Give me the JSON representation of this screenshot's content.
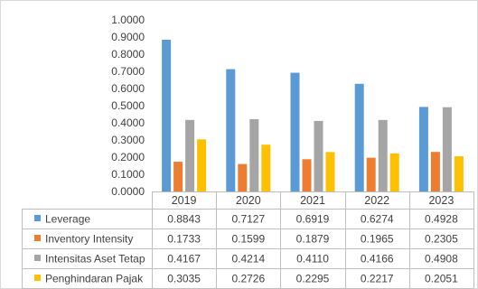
{
  "chart_data": {
    "type": "bar",
    "title": "",
    "xlabel": "",
    "ylabel": "",
    "categories": [
      "2019",
      "2020",
      "2021",
      "2022",
      "2023"
    ],
    "ylim": [
      0,
      1
    ],
    "y_ticks": [
      "0.0000",
      "0.1000",
      "0.2000",
      "0.3000",
      "0.4000",
      "0.5000",
      "0.6000",
      "0.7000",
      "0.8000",
      "0.9000",
      "1.0000"
    ],
    "grid": false,
    "legend": "data-table",
    "series": [
      {
        "name": "Leverage",
        "color": "#5B9BD5",
        "values": [
          0.8843,
          0.7127,
          0.6919,
          0.6274,
          0.4928
        ],
        "labels": [
          "0.8843",
          "0.7127",
          "0.6919",
          "0.6274",
          "0.4928"
        ]
      },
      {
        "name": "Inventory Intensity",
        "color": "#ED7D31",
        "values": [
          0.1733,
          0.1599,
          0.1879,
          0.1965,
          0.2305
        ],
        "labels": [
          "0.1733",
          "0.1599",
          "0.1879",
          "0.1965",
          "0.2305"
        ]
      },
      {
        "name": "Intensitas Aset Tetap",
        "color": "#A5A5A5",
        "values": [
          0.4167,
          0.4214,
          0.411,
          0.4166,
          0.4908
        ],
        "labels": [
          "0.4167",
          "0.4214",
          "0.4110",
          "0.4166",
          "0.4908"
        ]
      },
      {
        "name": "Penghindaran Pajak",
        "color": "#FFC000",
        "values": [
          0.3035,
          0.2726,
          0.2295,
          0.2217,
          0.2051
        ],
        "labels": [
          "0.3035",
          "0.2726",
          "0.2295",
          "0.2217",
          "0.2051"
        ]
      }
    ]
  }
}
